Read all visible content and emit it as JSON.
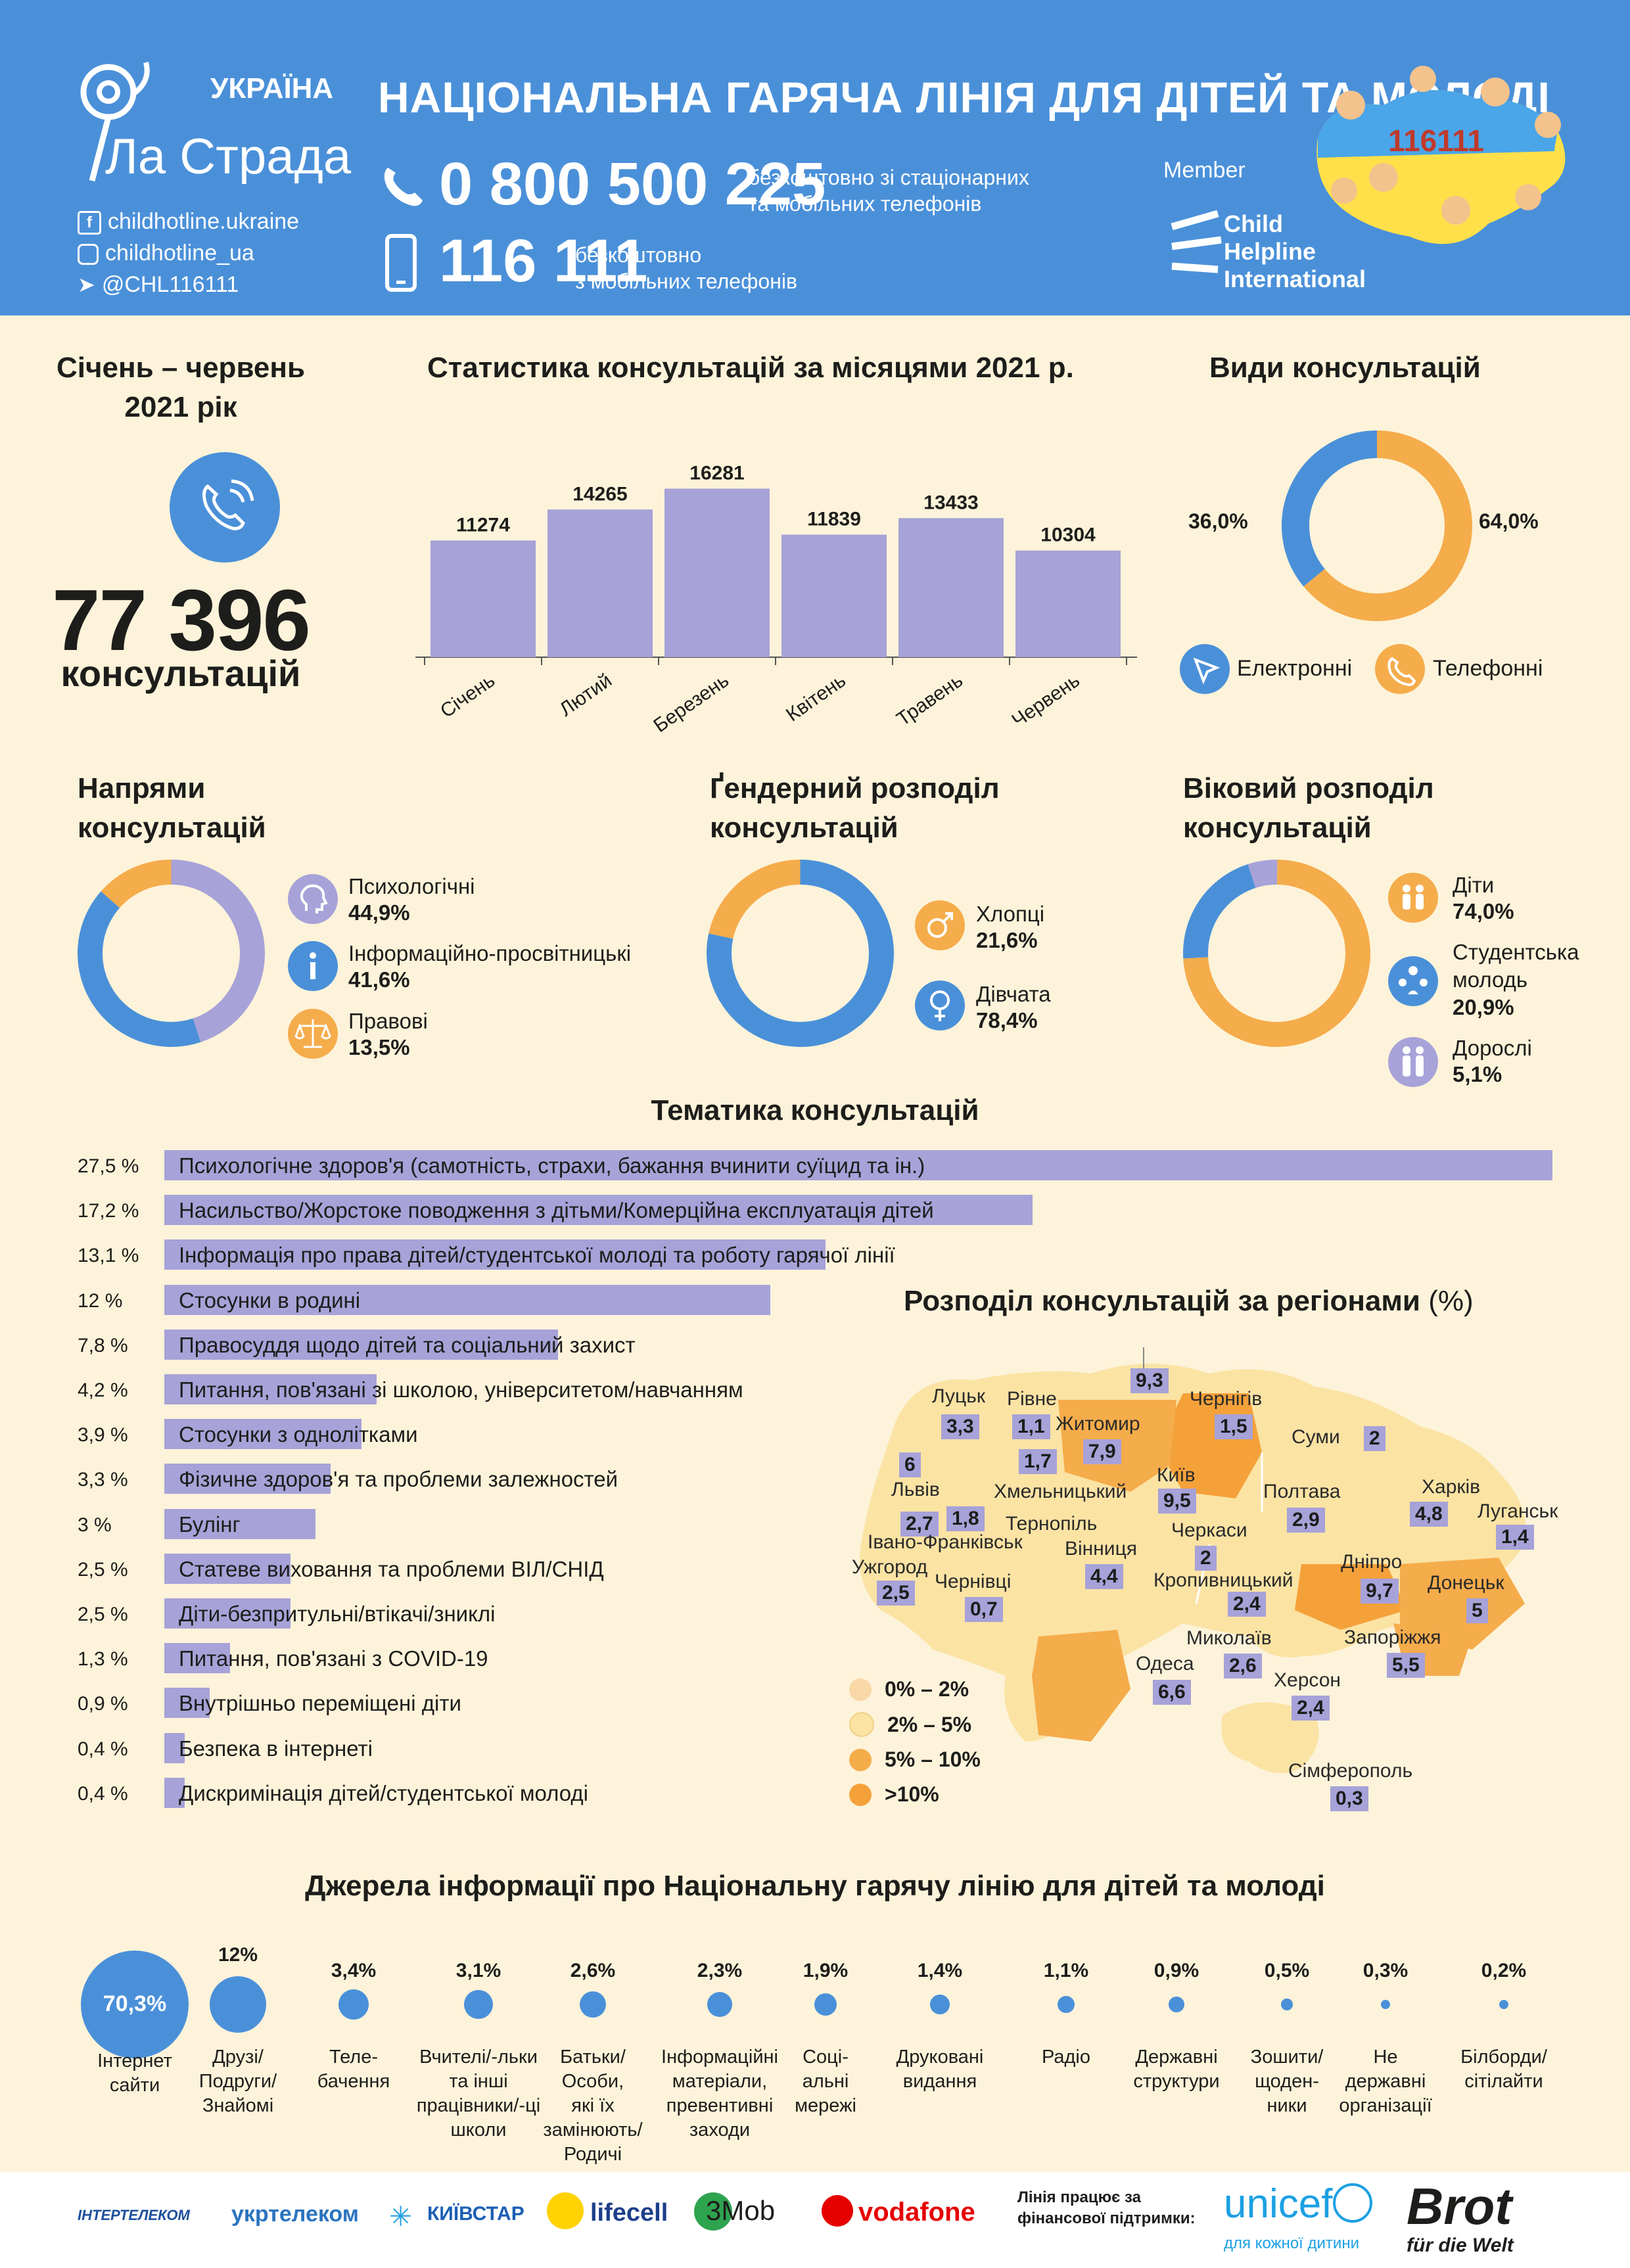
{
  "header": {
    "org_country": "УКРАЇНА",
    "org_name": "Ла Страда",
    "title": "НАЦІОНАЛЬНА ГАРЯЧА ЛІНІЯ ДЛЯ ДІТЕЙ ТА МОЛОДІ",
    "phone1": "0 800 500 225",
    "phone1_note_1": "безкоштовно зі стаціонарних",
    "phone1_note_2": "та мобільних телефонів",
    "phone2": "116 111",
    "phone2_note_1": "безкоштовно",
    "phone2_note_2": "з мобільних телефонів",
    "social_facebook": "childhotline.ukraine",
    "social_instagram": "childhotline_ua",
    "social_telegram": "@CHL116111",
    "member_label": "Member",
    "chi_line1": "Child",
    "chi_line2": "Helpline",
    "chi_line3": "International",
    "badge_number": "116111",
    "accent": "#4a90d9"
  },
  "summary": {
    "period_line1": "Січень – червень",
    "period_line2": "2021 рік",
    "total": "77 396",
    "total_label": "консультацій"
  },
  "monthly": {
    "title": "Статистика консультацій за місяцями 2021 р.",
    "color": "#a7a2d8"
  },
  "types": {
    "title": "Види консультацій",
    "legend_electronic": "Електронні",
    "legend_phone": "Телефонні",
    "label_electronic": "36,0%",
    "label_phone": "64,0%",
    "color_electronic": "#4a90d9",
    "color_phone": "#f5ac4b"
  },
  "directions": {
    "title_1": "Напрями",
    "title_2": "консультацій",
    "items": [
      {
        "label": "Психологічні",
        "value": "44,9%"
      },
      {
        "label": "Інформаційно-просвітницькі",
        "value": "41,6%"
      },
      {
        "label": "Правові",
        "value": "13,5%"
      }
    ]
  },
  "gender": {
    "title_1": "Ґендерний розподіл",
    "title_2": "консультацій",
    "items": [
      {
        "label": "Хлопці",
        "value": "21,6%"
      },
      {
        "label": "Дівчата",
        "value": "78,4%"
      }
    ]
  },
  "age": {
    "title_1": "Віковий розподіл",
    "title_2": "консультацій",
    "items": [
      {
        "label": "Діти",
        "value": "74,0%"
      },
      {
        "label_1": "Студентська",
        "label_2": "молодь",
        "value": "20,9%"
      },
      {
        "label": "Дорослі",
        "value": "5,1%"
      }
    ]
  },
  "topics": {
    "title": "Тематика консультацій"
  },
  "regions": {
    "title": "Розподіл консультацій за регіонами",
    "title_unit": "(%)",
    "legend": [
      "0% – 2%",
      "2% – 5%",
      "5% – 10%",
      ">10%"
    ],
    "legend_colors": [
      "#f9d7a6",
      "#fbe3a4",
      "#f5ac4b",
      "#f5a13a"
    ],
    "items": [
      {
        "name": "Луцьк",
        "value": "3,3"
      },
      {
        "name": "Рівне",
        "value": "1,1"
      },
      {
        "name": "Житомир",
        "value": "7,9"
      },
      {
        "name": "Чернігів",
        "value": "1,5"
      },
      {
        "name": "Суми",
        "value": "2"
      },
      {
        "name": "Львів",
        "value": "2,7"
      },
      {
        "name": "Хмельницький",
        "value": "1,7"
      },
      {
        "name": "Тернопіль",
        "value": "1,8"
      },
      {
        "name": "Київ",
        "value": "9,5"
      },
      {
        "name": "Полтава",
        "value": "2,9"
      },
      {
        "name": "Харків",
        "value": "4,8"
      },
      {
        "name": "Луганськ",
        "value": "1,4"
      },
      {
        "name": "Івано-Франківськ",
        "value": ""
      },
      {
        "name": "Вінниця",
        "value": "4,4"
      },
      {
        "name": "Черкаси",
        "value": "2"
      },
      {
        "name": "Ужгород",
        "value": "2,5"
      },
      {
        "name": "Чернівці",
        "value": "0,7"
      },
      {
        "name": "Кропивницький",
        "value": "2,4"
      },
      {
        "name": "Дніпро",
        "value": "9,7"
      },
      {
        "name": "Донецьк",
        "value": "5"
      },
      {
        "name": "Миколаїв",
        "value": "2,6"
      },
      {
        "name": "Запоріжжя",
        "value": "5,5"
      },
      {
        "name": "Одеса",
        "value": "6,6"
      },
      {
        "name": "Херсон",
        "value": "2,4"
      },
      {
        "name": "Сімферополь",
        "value": "0,3"
      }
    ],
    "extra_values": [
      "9,3",
      "6"
    ]
  },
  "sources": {
    "title": "Джерела інформації про Національну гарячу лінію для дітей та молоді"
  },
  "footer": {
    "logos": [
      "ІНТЕРТЕЛЕКОМ",
      "укртелеком",
      "КИЇВСТАР",
      "lifecell",
      "3Mob",
      "vodafone"
    ],
    "support_1": "Лінія працює за",
    "support_2": "фінансової підтримки:",
    "unicef": "unicef",
    "unicef_tag": "для кожної дитини",
    "brot_1": "Brot",
    "brot_2": "für die Welt"
  },
  "chart_data": [
    {
      "type": "bar",
      "title": "Статистика консультацій за місяцями 2021 р.",
      "categories": [
        "Січень",
        "Лютий",
        "Березень",
        "Квітень",
        "Травень",
        "Червень"
      ],
      "values": [
        11274,
        14265,
        16281,
        11839,
        13433,
        10304
      ],
      "ylim": [
        0,
        20000
      ]
    },
    {
      "type": "pie",
      "title": "Види консультацій",
      "categories": [
        "Електронні",
        "Телефонні"
      ],
      "values": [
        36.0,
        64.0
      ]
    },
    {
      "type": "pie",
      "title": "Напрями консультацій",
      "categories": [
        "Психологічні",
        "Інформаційно-просвітницькі",
        "Правові"
      ],
      "values": [
        44.9,
        41.6,
        13.5
      ]
    },
    {
      "type": "pie",
      "title": "Ґендерний розподіл консультацій",
      "categories": [
        "Хлопці",
        "Дівчата"
      ],
      "values": [
        21.6,
        78.4
      ]
    },
    {
      "type": "pie",
      "title": "Віковий розподіл консультацій",
      "categories": [
        "Діти",
        "Студентська молодь",
        "Дорослі"
      ],
      "values": [
        74.0,
        20.9,
        5.1
      ]
    },
    {
      "type": "bar",
      "title": "Тематика консультацій",
      "categories": [
        "Психологічне здоров'я (самотність, страхи, бажання вчинити суїцид та ін.)",
        "Насильство/Жорстоке поводження з дітьми/Комерційна експлуатація дітей",
        "Інформація про права дітей/студентської молоді та роботу гарячої лінії",
        "Стосунки в родині",
        "Правосуддя щодо дітей та соціальний захист",
        "Питання, пов'язані зі школою, університетом/навчанням",
        "Стосунки з однолітками",
        "Фізичне здоров'я та проблеми залежностей",
        "Булінг",
        "Статеве виховання та проблеми ВІЛ/СНІД",
        "Діти-безпритульні/втікачі/зниклі",
        "Питання, пов'язані з COVID-19",
        "Внутрішньо переміщені діти",
        "Безпека в інтернеті",
        "Дискримінація дітей/студентської молоді"
      ],
      "values": [
        27.5,
        17.2,
        13.1,
        12,
        7.8,
        4.2,
        3.9,
        3.3,
        3,
        2.5,
        2.5,
        1.3,
        0.9,
        0.4,
        0.4
      ],
      "value_labels": [
        "27,5 %",
        "17,2 %",
        "13,1 %",
        "12 %",
        "7,8 %",
        "4,2 %",
        "3,9 %",
        "3,3 %",
        "3 %",
        "2,5 %",
        "2,5 %",
        "1,3 %",
        "0,9 %",
        "0,4 %",
        "0,4 %"
      ]
    },
    {
      "type": "scatter",
      "title": "Джерела інформації про Національну гарячу лінію для дітей та молоді",
      "categories": [
        [
          "Інтернет",
          "сайти"
        ],
        [
          "Друзі/",
          "Подруги/",
          "Знайомі"
        ],
        [
          "Теле-",
          "бачення"
        ],
        [
          "Вчителі/-льки",
          "та інші",
          "працівники/-ці",
          "школи"
        ],
        [
          "Батьки/",
          "Особи,",
          "які їх",
          "замінюють/",
          "Родичі"
        ],
        [
          "Інформаційні",
          "матеріали,",
          "превентивні",
          "заходи"
        ],
        [
          "Соці-",
          "альні",
          "мережі"
        ],
        [
          "Друковані",
          "видання"
        ],
        [
          "Радіо"
        ],
        [
          "Державні",
          "структури"
        ],
        [
          "Зошити/",
          "щоден-",
          "ники"
        ],
        [
          "Не",
          "державні",
          "організації"
        ],
        [
          "Білборди/",
          "сітілайти"
        ]
      ],
      "values": [
        70.3,
        12,
        3.4,
        3.1,
        2.6,
        2.3,
        1.9,
        1.4,
        1.1,
        0.9,
        0.5,
        0.3,
        0.2
      ],
      "value_labels": [
        "70,3%",
        "12%",
        "3,4%",
        "3,1%",
        "2,6%",
        "2,3%",
        "1,9%",
        "1,4%",
        "1,1%",
        "0,9%",
        "0,5%",
        "0,3%",
        "0,2%"
      ]
    }
  ]
}
